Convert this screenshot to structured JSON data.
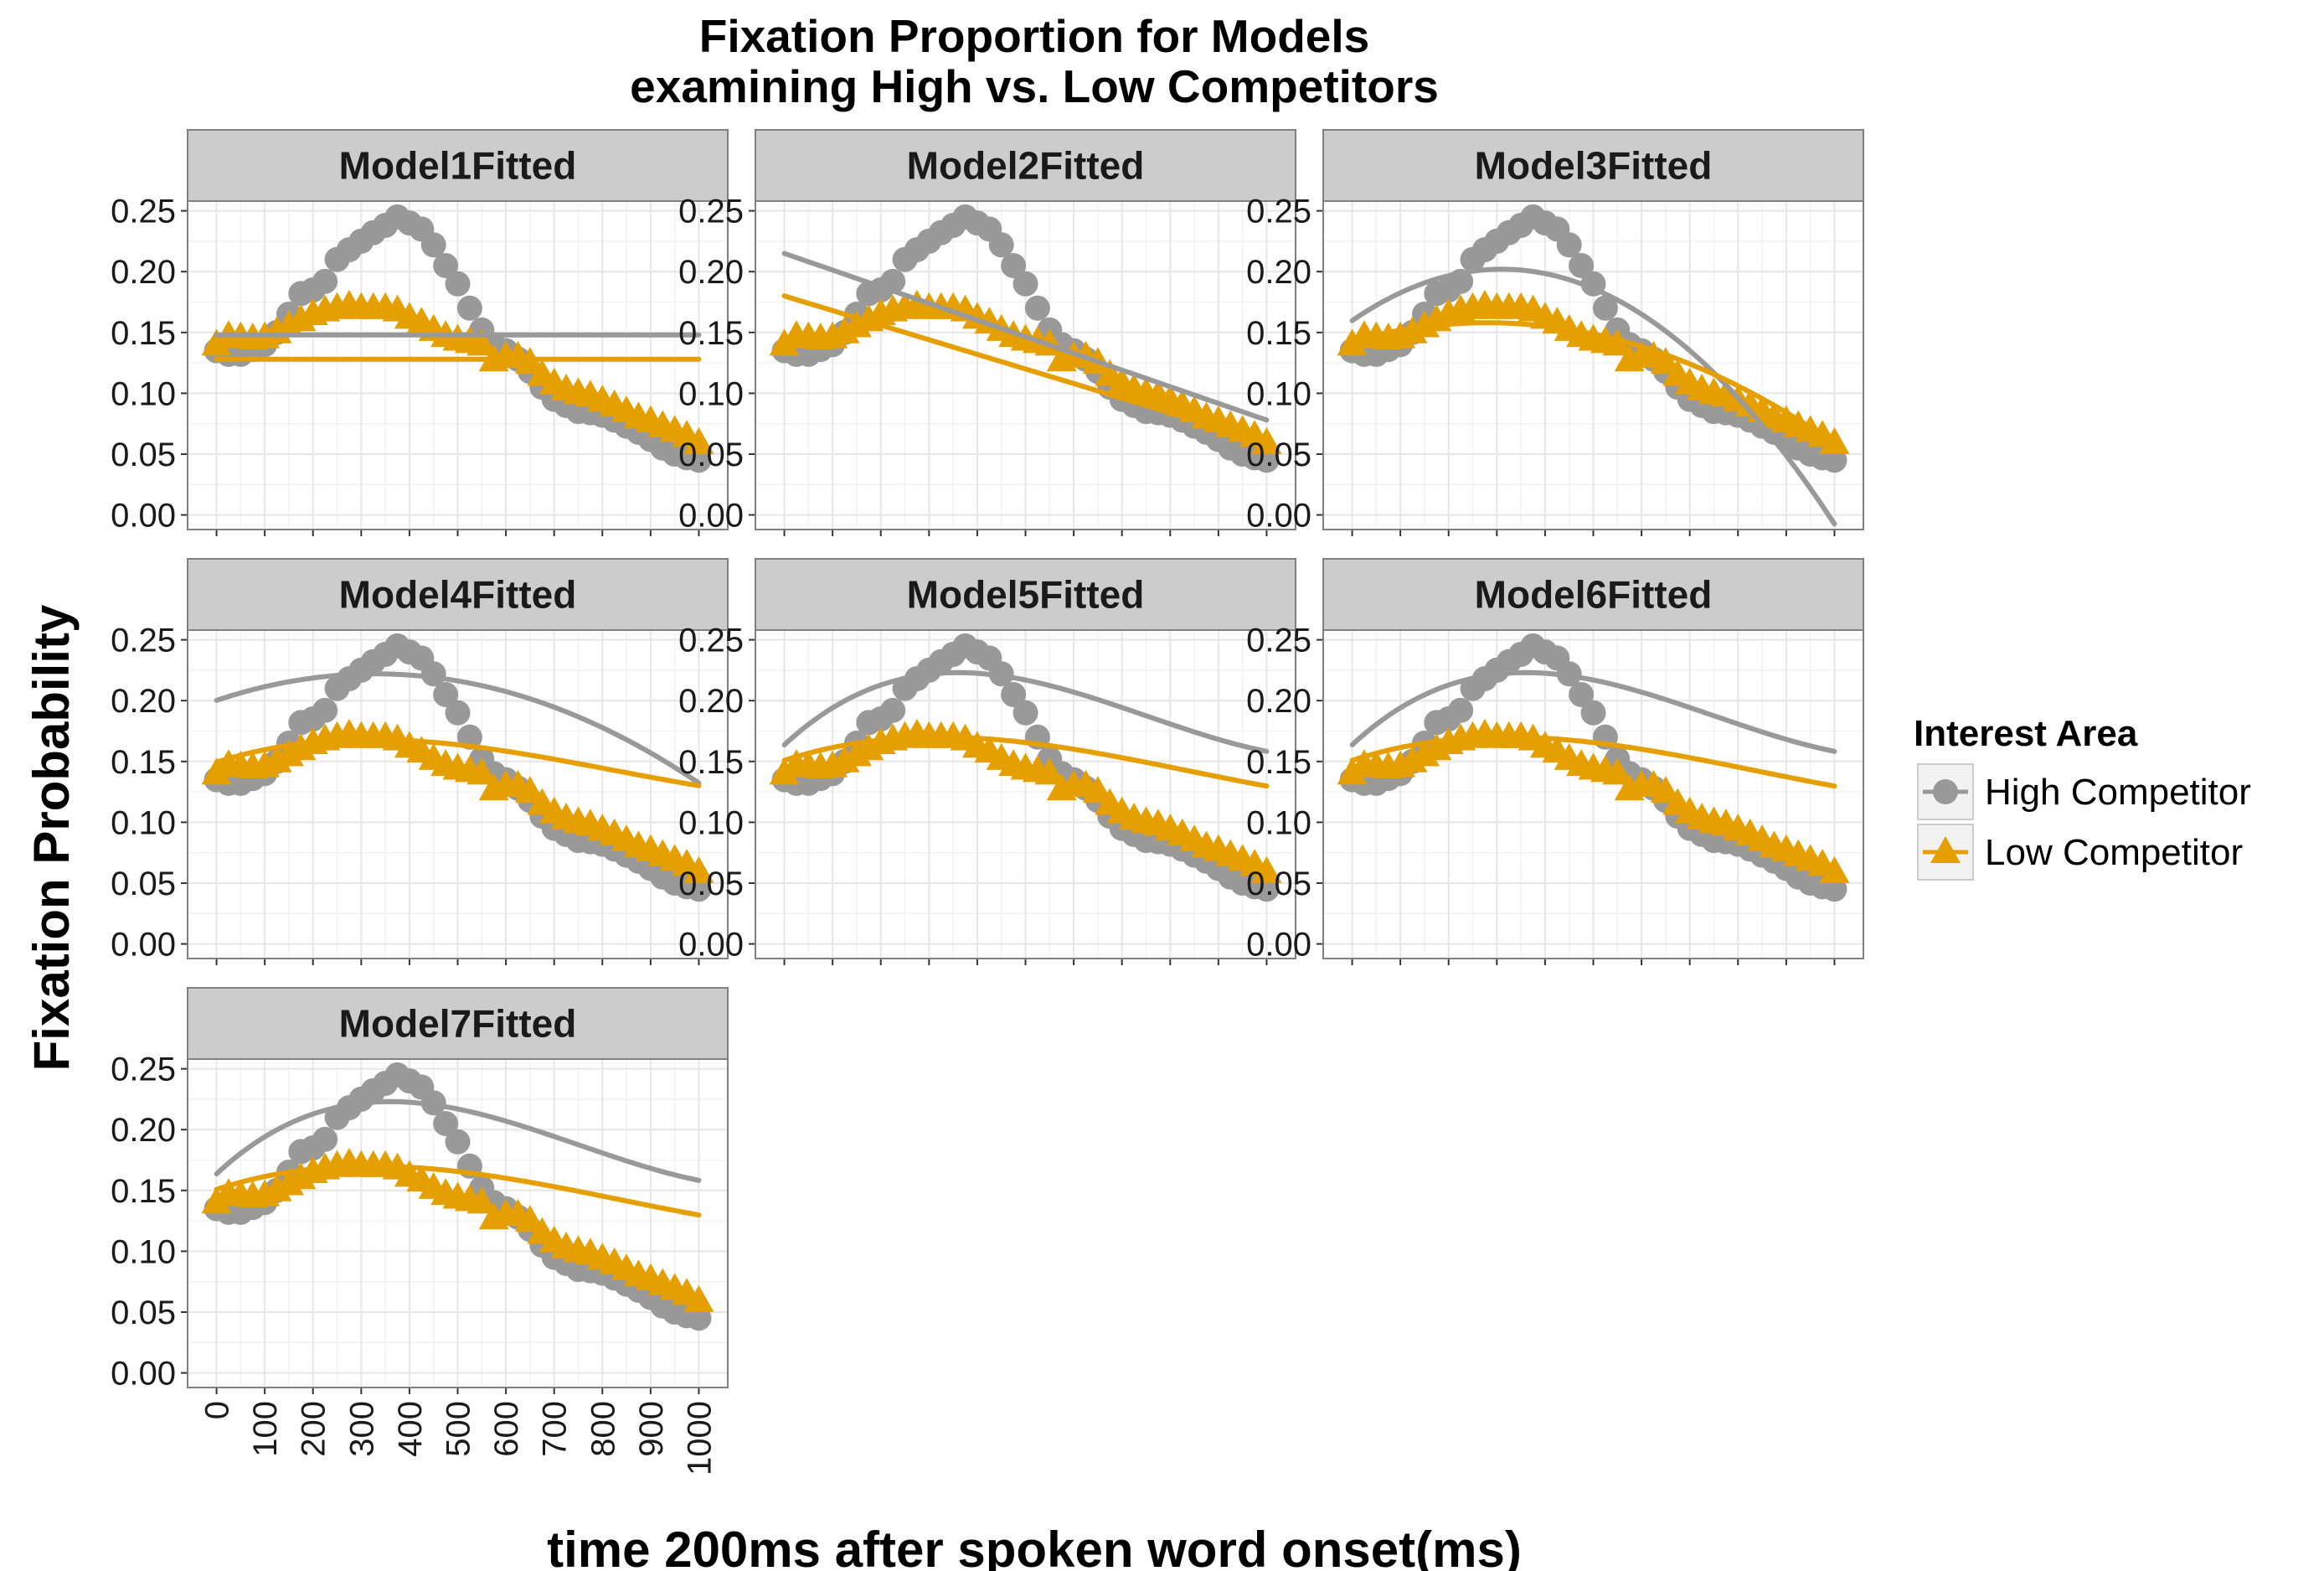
{
  "chart_data": {
    "type": "line",
    "title_lines": [
      "Fixation Proportion for Models",
      "examining High vs. Low Competitors"
    ],
    "xlabel": "time 200ms after spoken word onset(ms)",
    "ylabel": "Fixation Probability",
    "xlim": [
      -60,
      1060
    ],
    "ylim": [
      -0.012,
      0.258
    ],
    "x_ticks": [
      0,
      100,
      200,
      300,
      400,
      500,
      600,
      700,
      800,
      900,
      1000
    ],
    "y_ticks": [
      0.0,
      0.05,
      0.1,
      0.15,
      0.2,
      0.25
    ],
    "y_tick_labels": [
      "0.00",
      "0.05",
      "0.10",
      "0.15",
      "0.20",
      "0.25"
    ],
    "grid": true,
    "legend": {
      "title": "Interest Area",
      "placement": "right",
      "entries": [
        {
          "label": "High Competitor",
          "marker": "circle",
          "color": "#999999"
        },
        {
          "label": "Low Competitor",
          "marker": "triangle",
          "color": "#E69F00"
        }
      ]
    },
    "x": [
      0,
      25,
      50,
      75,
      100,
      125,
      150,
      175,
      200,
      225,
      250,
      275,
      300,
      325,
      350,
      375,
      400,
      425,
      450,
      475,
      500,
      525,
      550,
      575,
      600,
      625,
      650,
      675,
      700,
      725,
      750,
      775,
      800,
      825,
      850,
      875,
      900,
      925,
      950,
      975,
      1000
    ],
    "observed": [
      {
        "name": "High Competitor",
        "color": "#999999",
        "marker": "circle",
        "values": [
          0.135,
          0.132,
          0.132,
          0.136,
          0.14,
          0.15,
          0.165,
          0.182,
          0.185,
          0.192,
          0.21,
          0.218,
          0.225,
          0.232,
          0.238,
          0.245,
          0.24,
          0.235,
          0.222,
          0.205,
          0.19,
          0.17,
          0.152,
          0.14,
          0.135,
          0.128,
          0.118,
          0.105,
          0.095,
          0.09,
          0.085,
          0.084,
          0.082,
          0.078,
          0.073,
          0.068,
          0.062,
          0.055,
          0.05,
          0.047,
          0.045
        ]
      },
      {
        "name": "Low Competitor",
        "color": "#E69F00",
        "marker": "triangle",
        "values": [
          0.14,
          0.147,
          0.146,
          0.145,
          0.146,
          0.15,
          0.155,
          0.16,
          0.165,
          0.168,
          0.17,
          0.172,
          0.17,
          0.17,
          0.17,
          0.168,
          0.162,
          0.158,
          0.152,
          0.147,
          0.144,
          0.142,
          0.14,
          0.127,
          0.13,
          0.13,
          0.125,
          0.115,
          0.108,
          0.103,
          0.1,
          0.098,
          0.094,
          0.09,
          0.085,
          0.08,
          0.077,
          0.073,
          0.069,
          0.065,
          0.059
        ]
      }
    ],
    "panels": [
      {
        "name": "Model1Fitted",
        "fits": {
          "high": {
            "form": "poly",
            "coef": [
              0.148
            ]
          },
          "low": {
            "form": "poly",
            "coef": [
              0.128
            ]
          }
        }
      },
      {
        "name": "Model2Fitted",
        "fits": {
          "high": {
            "form": "poly",
            "coef": [
              0.215,
              -0.000137
            ]
          },
          "low": {
            "form": "poly",
            "coef": [
              0.18,
              -0.00012
            ]
          }
        }
      },
      {
        "name": "Model3Fitted",
        "fits": {
          "high": {
            "form": "quad",
            "xv": 310,
            "yv": 0.202,
            "k": 4.4e-07
          },
          "low": {
            "form": "quad",
            "xv": 280,
            "yv": 0.158,
            "k": 1.92e-07
          }
        }
      },
      {
        "name": "Model4Fitted",
        "fits": {
          "high": {
            "form": "cubic",
            "xv": 330,
            "yv": 0.222,
            "k": 2e-07,
            "c3": 0.0
          },
          "low": {
            "form": "cubic",
            "xv": 320,
            "yv": 0.168,
            "k": 1.5e-07,
            "c3": 1e-10
          }
        }
      },
      {
        "name": "Model5Fitted",
        "fits": {
          "high": {
            "form": "cubic",
            "xv": 360,
            "yv": 0.223,
            "k": 3.5e-07,
            "c3": 3e-10
          },
          "low": {
            "form": "cubic",
            "xv": 320,
            "yv": 0.17,
            "k": 1.55e-07,
            "c3": 1e-10
          }
        }
      },
      {
        "name": "Model6Fitted",
        "fits": {
          "high": {
            "form": "cubic",
            "xv": 360,
            "yv": 0.223,
            "k": 3.5e-07,
            "c3": 3e-10
          },
          "low": {
            "form": "cubic",
            "xv": 320,
            "yv": 0.17,
            "k": 1.55e-07,
            "c3": 1e-10
          }
        }
      },
      {
        "name": "Model7Fitted",
        "fits": {
          "high": {
            "form": "cubic",
            "xv": 360,
            "yv": 0.223,
            "k": 3.5e-07,
            "c3": 3e-10
          },
          "low": {
            "form": "cubic",
            "xv": 320,
            "yv": 0.17,
            "k": 1.55e-07,
            "c3": 1e-10
          }
        }
      }
    ]
  }
}
